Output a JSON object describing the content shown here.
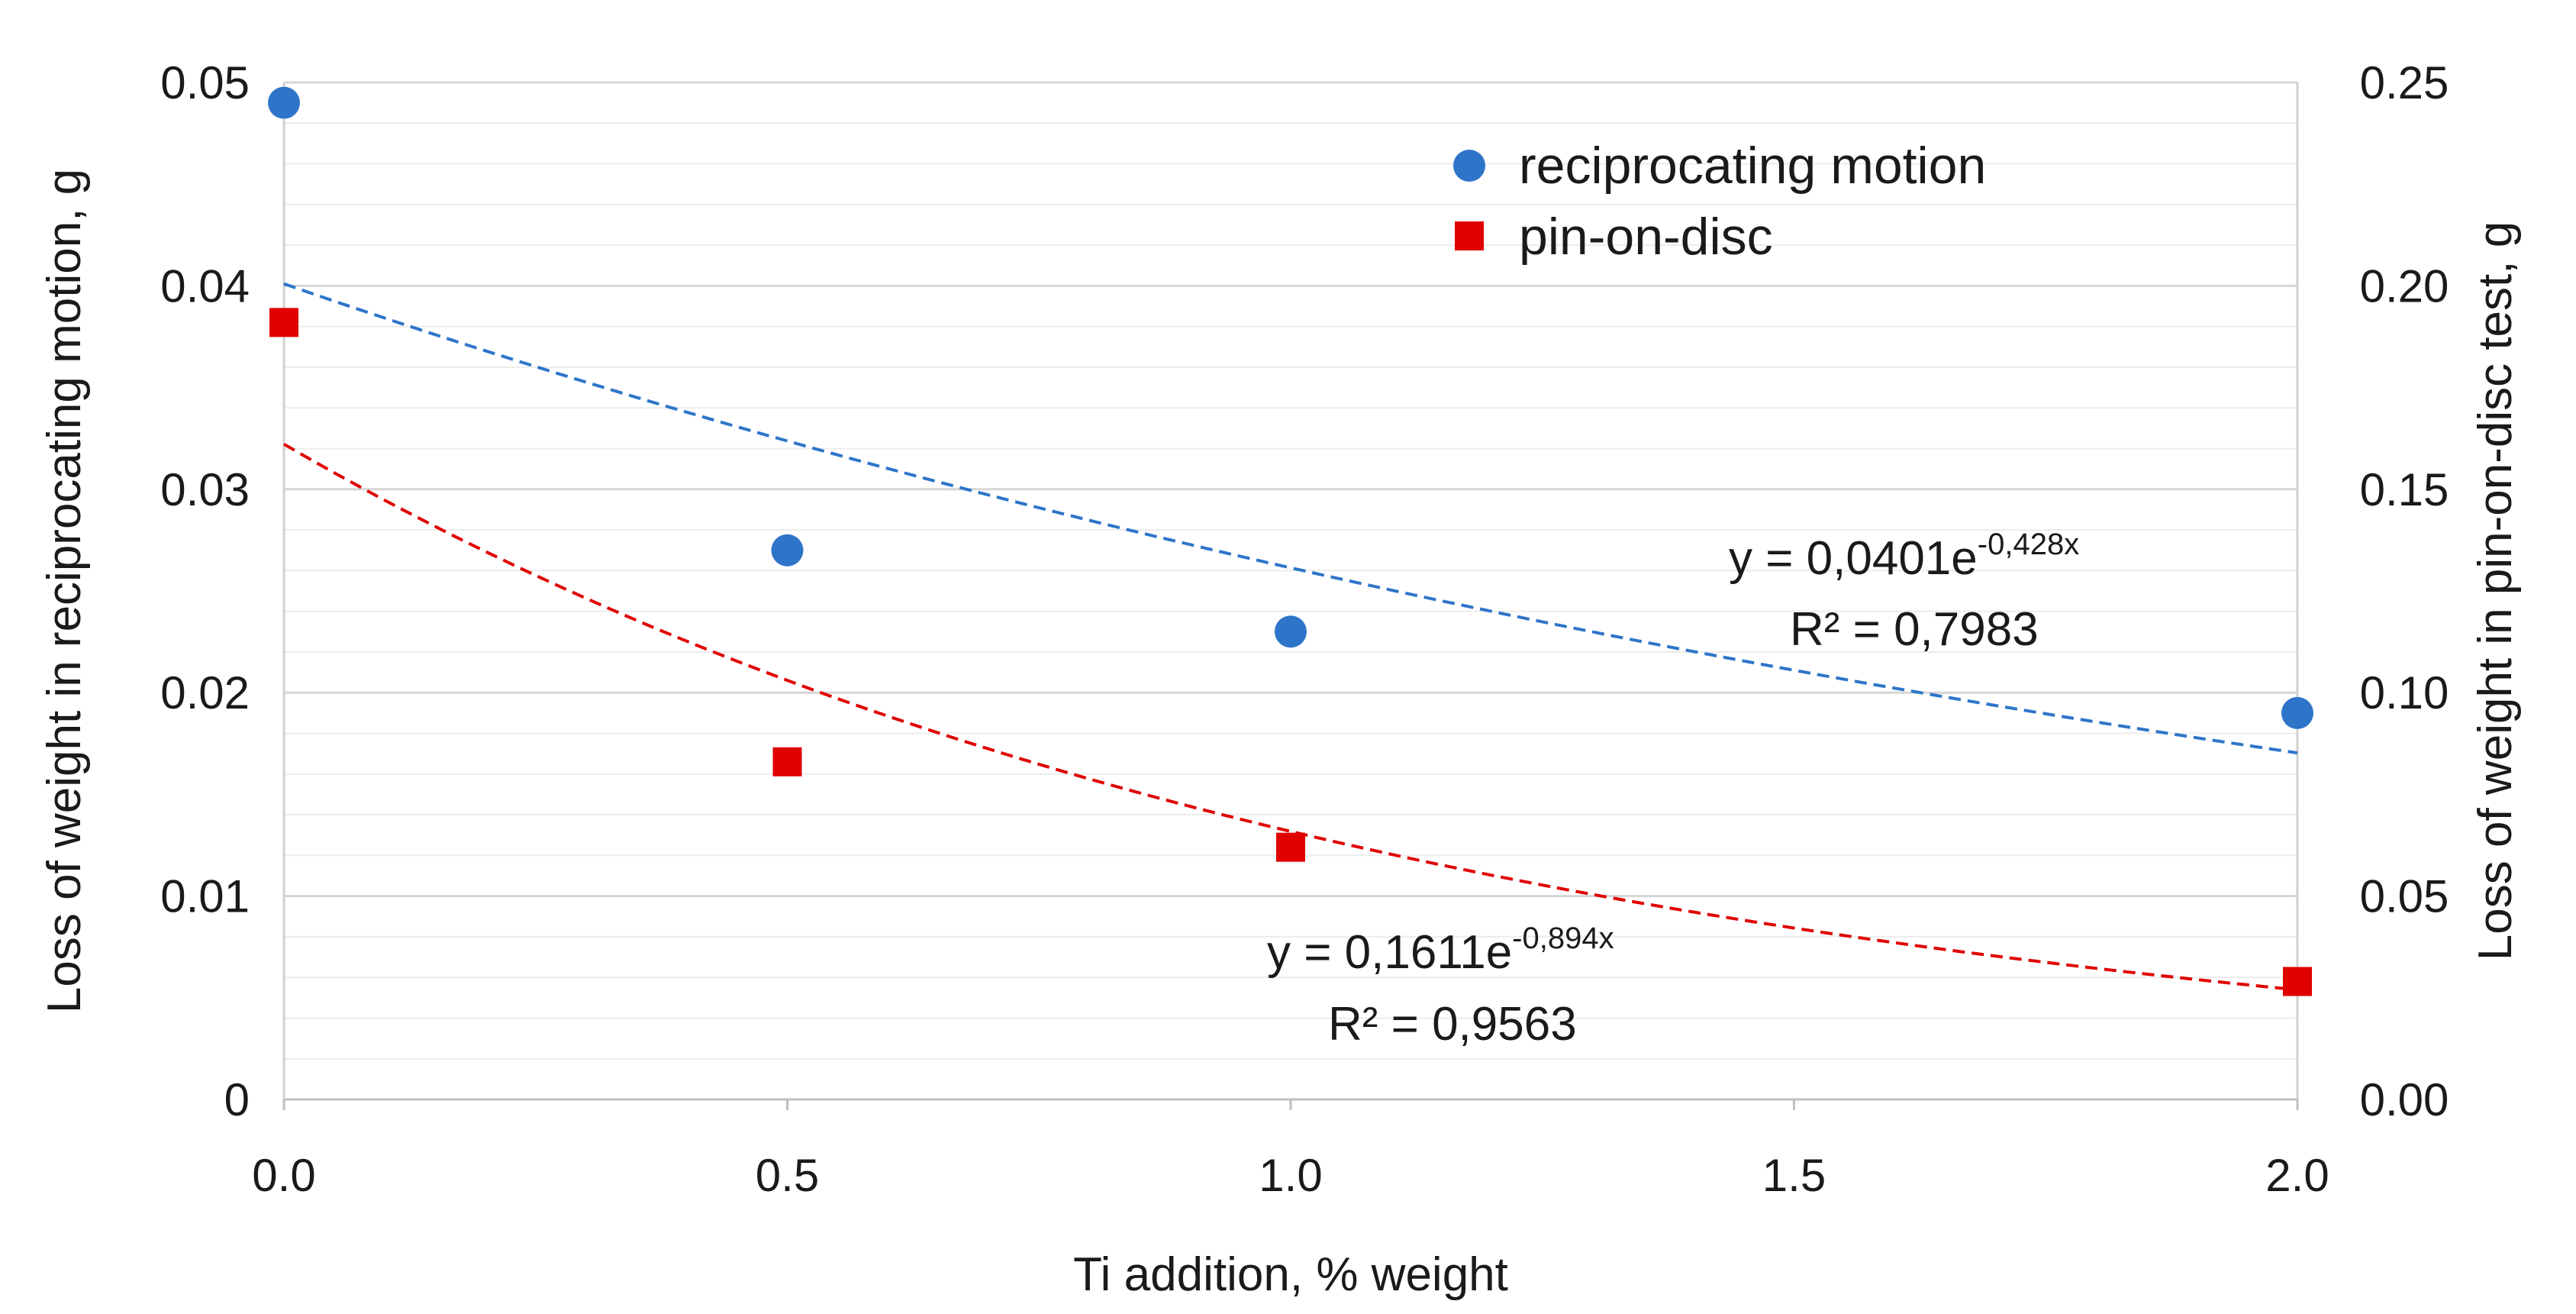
{
  "chart_data": {
    "type": "scatter",
    "xlabel": "Ti addition, % weight",
    "ylabel_left": "Loss of weight in reciprocating motion, g",
    "ylabel_right": "Loss of weight in pin-on-disc test, g",
    "xlim": [
      0,
      2
    ],
    "ylim_left": [
      0,
      0.05
    ],
    "ylim_right": [
      0,
      0.25
    ],
    "x_ticks": [
      "0.0",
      "0.5",
      "1.0",
      "1.5",
      "2.0"
    ],
    "y_left_ticks": [
      "0",
      "0.01",
      "0.02",
      "0.03",
      "0.04",
      "0.05"
    ],
    "y_right_ticks": [
      "0.00",
      "0.05",
      "0.10",
      "0.15",
      "0.20",
      "0.25"
    ],
    "series": [
      {
        "name": "reciprocating motion",
        "axis": "left",
        "marker": "circle",
        "color": "#2E75C9",
        "x": [
          0,
          0.5,
          1.0,
          2.0
        ],
        "y": [
          0.049,
          0.027,
          0.023,
          0.019
        ],
        "trendline": {
          "type": "exponential",
          "a": 0.0401,
          "b": -0.428,
          "color": "#2E75C9",
          "equation_base": "y = 0,0401e",
          "equation_exp": "-0,428x",
          "r2_text": "R² = 0,7983"
        }
      },
      {
        "name": "pin-on-disc",
        "axis": "right",
        "marker": "square",
        "color": "#E00000",
        "x": [
          0,
          0.5,
          1.0,
          2.0
        ],
        "y": [
          0.191,
          0.083,
          0.062,
          0.029
        ],
        "trendline": {
          "type": "exponential",
          "a": 0.1611,
          "b": -0.894,
          "color": "#E00000",
          "equation_base": "y = 0,1611e",
          "equation_exp": "-0,894x",
          "r2_text": "R² = 0,9563"
        }
      }
    ],
    "legend_position": "top-right",
    "grid": true
  }
}
